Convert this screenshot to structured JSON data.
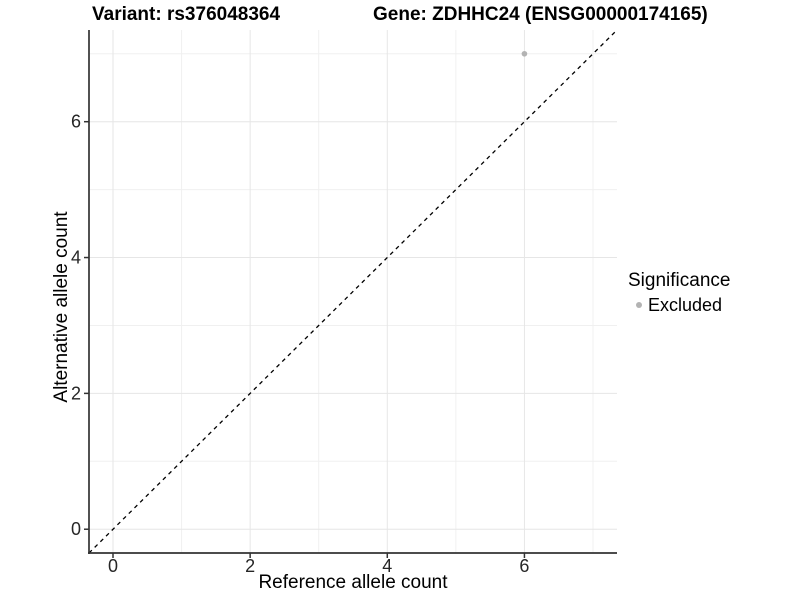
{
  "chart_data": {
    "type": "scatter",
    "title_left": "Variant: rs376048364",
    "title_right": "Gene: ZDHHC24 (ENSG00000174165)",
    "xlabel": "Reference allele count",
    "ylabel": "Alternative allele count",
    "xlim": [
      -0.35,
      7.35
    ],
    "ylim": [
      -0.35,
      7.35
    ],
    "x_ticks": [
      0,
      2,
      4,
      6
    ],
    "y_ticks": [
      0,
      2,
      4,
      6
    ],
    "x_minor_gridlines": [
      1,
      3,
      5,
      7
    ],
    "y_minor_gridlines": [
      1,
      3,
      5,
      7
    ],
    "grid": "major and minor, light grey on white",
    "points": [
      {
        "x": 6,
        "y": 7,
        "series": "Excluded"
      }
    ],
    "identity_line": {
      "slope": 1,
      "intercept": 0,
      "style": "dashed",
      "color": "#000000"
    },
    "legend": {
      "title": "Significance",
      "position": "right",
      "entries": [
        {
          "label": "Excluded",
          "color": "#b3b3b3",
          "marker": "circle"
        }
      ]
    },
    "colors": {
      "background": "#ffffff",
      "point": "#b3b3b3",
      "grid_major": "#e6e6e6",
      "grid_minor": "#f0f0f0",
      "axis": "#333333",
      "tick_text": "#262626",
      "title_text": "#000000"
    }
  }
}
